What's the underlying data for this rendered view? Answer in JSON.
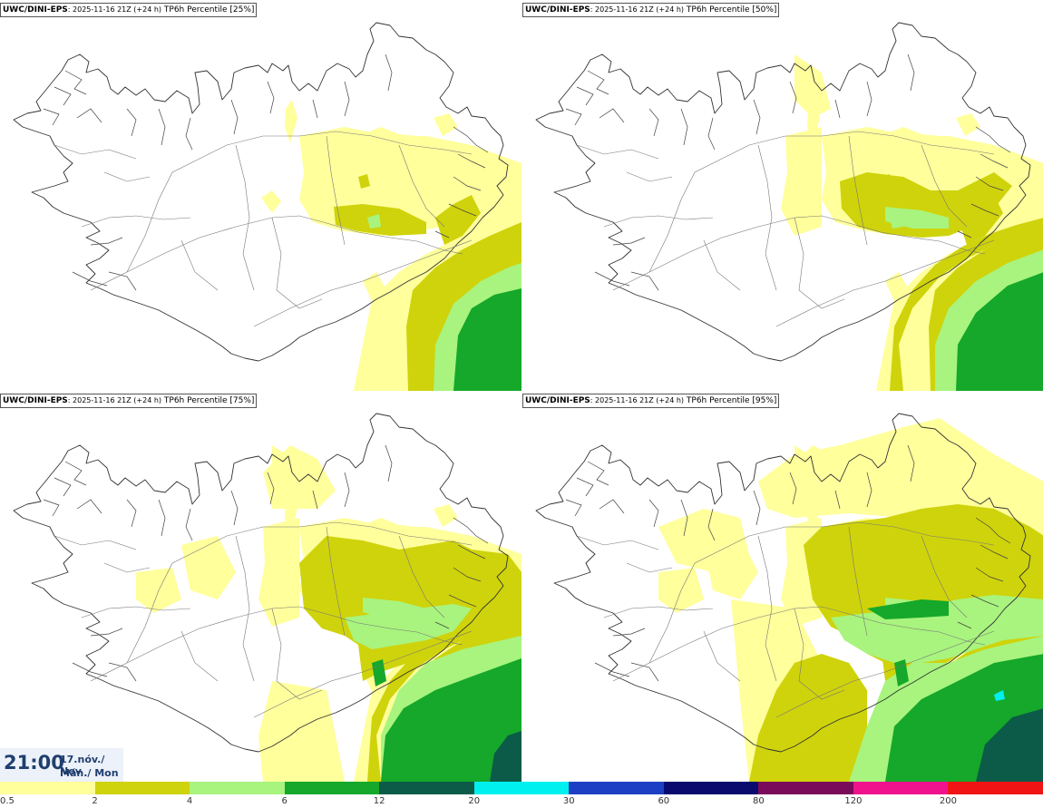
{
  "panels": [
    {
      "model": "UWC/DINI-EPS",
      "meta": ": 2025-11-16 21Z (+24 h)",
      "field": "TP6h Percentile [25%]",
      "level": 0
    },
    {
      "model": "UWC/DINI-EPS",
      "meta": ": 2025-11-16 21Z (+24 h)",
      "field": "TP6h Percentile [50%]",
      "level": 1
    },
    {
      "model": "UWC/DINI-EPS",
      "meta": ": 2025-11-16 21Z (+24 h)",
      "field": "TP6h Percentile [75%]",
      "level": 2
    },
    {
      "model": "UWC/DINI-EPS",
      "meta": ": 2025-11-16 21Z (+24 h)",
      "field": "TP6h Percentile [95%]",
      "level": 3
    }
  ],
  "valid_time": {
    "hour": "21:00",
    "date": "17.nóv./ Nov",
    "weekday": "Mán./ Mon"
  },
  "legend": {
    "colors": [
      "#ffff9c",
      "#cfd30b",
      "#a8f47e",
      "#15a82a",
      "#0b5b48",
      "#00f0f0",
      "#1c3fc3",
      "#0a0a6e",
      "#7a0a5a",
      "#f0128c",
      "#f01414"
    ],
    "ticks": [
      "0.5",
      "2",
      "4",
      "6",
      "12",
      "20",
      "30",
      "60",
      "80",
      "120",
      "200"
    ]
  }
}
